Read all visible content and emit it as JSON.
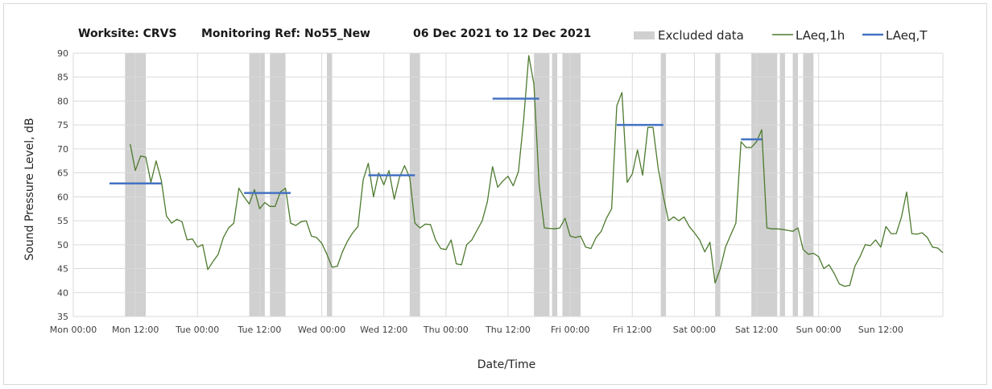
{
  "chart_data": {
    "type": "line",
    "title_parts": [
      "Worksite: CRVS",
      "Monitoring Ref: No55_New",
      "06 Dec 2021 to 12 Dec 2021"
    ],
    "xlabel": "Date/Time",
    "ylabel": "Sound Pressure Level, dB",
    "ylim": [
      35,
      90
    ],
    "y_ticks": [
      35,
      40,
      45,
      50,
      55,
      60,
      65,
      70,
      75,
      80,
      85,
      90
    ],
    "xlim_hours": [
      0,
      168
    ],
    "x_ticks": [
      {
        "label": "Mon 00:00",
        "hour": 0
      },
      {
        "label": "Mon 12:00",
        "hour": 12
      },
      {
        "label": "Tue 00:00",
        "hour": 24
      },
      {
        "label": "Tue 12:00",
        "hour": 36
      },
      {
        "label": "Wed 00:00",
        "hour": 48
      },
      {
        "label": "Wed 12:00",
        "hour": 60
      },
      {
        "label": "Thu 00:00",
        "hour": 72
      },
      {
        "label": "Thu 12:00",
        "hour": 84
      },
      {
        "label": "Fri 00:00",
        "hour": 96
      },
      {
        "label": "Fri 12:00",
        "hour": 108
      },
      {
        "label": "Sat 00:00",
        "hour": 120
      },
      {
        "label": "Sat 12:00",
        "hour": 132
      },
      {
        "label": "Sun 00:00",
        "hour": 144
      },
      {
        "label": "Sun 12:00",
        "hour": 156
      }
    ],
    "grid": true,
    "legend_position": "top-right",
    "legend": [
      "Excluded data",
      "LAeq,1h",
      "LAeq,T"
    ],
    "colors": {
      "excluded": "#d0d0d0",
      "laeq_1h": "#4d7a2e",
      "laeq_t": "#4472c4",
      "grid": "#d9d9d9"
    },
    "excluded_ranges": [
      [
        10.0,
        14.0
      ],
      [
        34.0,
        37.0
      ],
      [
        38.0,
        41.0
      ],
      [
        49.0,
        50.0
      ],
      [
        65.0,
        67.0
      ],
      [
        89.0,
        92.0
      ],
      [
        92.5,
        93.5
      ],
      [
        94.5,
        98.0
      ],
      [
        113.5,
        114.5
      ],
      [
        124.0,
        125.0
      ],
      [
        131.0,
        136.0
      ],
      [
        136.5,
        137.5
      ],
      [
        139.0,
        140.0
      ],
      [
        141.0,
        143.0
      ]
    ],
    "laeq_1h": [
      [
        11,
        71.0
      ],
      [
        12,
        65.5
      ],
      [
        13,
        68.5
      ],
      [
        14,
        68.3
      ],
      [
        15,
        63.0
      ],
      [
        16,
        67.5
      ],
      [
        17,
        63.5
      ],
      [
        18,
        56.0
      ],
      [
        19,
        54.5
      ],
      [
        20,
        55.3
      ],
      [
        21,
        54.8
      ],
      [
        22,
        51.0
      ],
      [
        23,
        51.2
      ],
      [
        24,
        49.5
      ],
      [
        25,
        50.0
      ],
      [
        26,
        44.8
      ],
      [
        27,
        46.5
      ],
      [
        28,
        48.0
      ],
      [
        29,
        51.5
      ],
      [
        30,
        53.5
      ],
      [
        31,
        54.5
      ],
      [
        32,
        61.8
      ],
      [
        33,
        60.0
      ],
      [
        34,
        58.5
      ],
      [
        35,
        61.5
      ],
      [
        36,
        57.5
      ],
      [
        37,
        58.8
      ],
      [
        38,
        58.0
      ],
      [
        39,
        58.0
      ],
      [
        40,
        61.0
      ],
      [
        41,
        61.8
      ],
      [
        42,
        54.5
      ],
      [
        43,
        54.0
      ],
      [
        44,
        54.8
      ],
      [
        45,
        55.0
      ],
      [
        46,
        51.8
      ],
      [
        47,
        51.5
      ],
      [
        48,
        50.3
      ],
      [
        49,
        48.0
      ],
      [
        50,
        45.3
      ],
      [
        51,
        45.5
      ],
      [
        52,
        48.5
      ],
      [
        53,
        50.8
      ],
      [
        54,
        52.5
      ],
      [
        55,
        53.8
      ],
      [
        56,
        63.5
      ],
      [
        57,
        67.0
      ],
      [
        58,
        60.0
      ],
      [
        59,
        65.0
      ],
      [
        60,
        62.5
      ],
      [
        61,
        65.5
      ],
      [
        62,
        59.5
      ],
      [
        63,
        64.0
      ],
      [
        64,
        66.5
      ],
      [
        65,
        64.0
      ],
      [
        66,
        54.5
      ],
      [
        67,
        53.5
      ],
      [
        68,
        54.3
      ],
      [
        69,
        54.2
      ],
      [
        70,
        51.0
      ],
      [
        71,
        49.2
      ],
      [
        72,
        49.0
      ],
      [
        73,
        51.0
      ],
      [
        74,
        46.0
      ],
      [
        75,
        45.8
      ],
      [
        76,
        50.0
      ],
      [
        77,
        51.0
      ],
      [
        78,
        53.0
      ],
      [
        79,
        55.0
      ],
      [
        80,
        59.0
      ],
      [
        81,
        66.3
      ],
      [
        82,
        62.0
      ],
      [
        83,
        63.3
      ],
      [
        84,
        64.3
      ],
      [
        85,
        62.3
      ],
      [
        86,
        65.3
      ],
      [
        87,
        76.0
      ],
      [
        88,
        89.5
      ],
      [
        89,
        83.5
      ],
      [
        90,
        62.5
      ],
      [
        91,
        53.5
      ],
      [
        92,
        53.4
      ],
      [
        93,
        53.3
      ],
      [
        94,
        53.5
      ],
      [
        95,
        55.5
      ],
      [
        96,
        51.8
      ],
      [
        97,
        51.5
      ],
      [
        98,
        51.8
      ],
      [
        99,
        49.5
      ],
      [
        100,
        49.2
      ],
      [
        101,
        51.5
      ],
      [
        102,
        52.8
      ],
      [
        103,
        55.5
      ],
      [
        104,
        57.5
      ],
      [
        105,
        79.0
      ],
      [
        106,
        81.8
      ],
      [
        107,
        63.0
      ],
      [
        108,
        64.8
      ],
      [
        109,
        69.8
      ],
      [
        110,
        64.5
      ],
      [
        111,
        74.5
      ],
      [
        112,
        74.5
      ],
      [
        113,
        66.0
      ],
      [
        114,
        60.0
      ],
      [
        115,
        55.0
      ],
      [
        116,
        55.8
      ],
      [
        117,
        55.0
      ],
      [
        118,
        55.8
      ],
      [
        119,
        53.8
      ],
      [
        120,
        52.5
      ],
      [
        121,
        51.0
      ],
      [
        122,
        48.5
      ],
      [
        123,
        50.5
      ],
      [
        124,
        42.0
      ],
      [
        125,
        45.0
      ],
      [
        126,
        49.5
      ],
      [
        127,
        52.0
      ],
      [
        128,
        54.5
      ],
      [
        129,
        71.5
      ],
      [
        130,
        70.3
      ],
      [
        131,
        70.3
      ],
      [
        132,
        71.5
      ],
      [
        133,
        74.0
      ],
      [
        134,
        53.5
      ],
      [
        135,
        53.3
      ],
      [
        136,
        53.3
      ],
      [
        137,
        53.2
      ],
      [
        138,
        53.0
      ],
      [
        139,
        52.8
      ],
      [
        140,
        53.5
      ],
      [
        141,
        49.0
      ],
      [
        142,
        48.0
      ],
      [
        143,
        48.2
      ],
      [
        144,
        47.5
      ],
      [
        145,
        45.0
      ],
      [
        146,
        45.8
      ],
      [
        147,
        44.0
      ],
      [
        148,
        41.8
      ],
      [
        149,
        41.3
      ],
      [
        150,
        41.5
      ],
      [
        151,
        45.5
      ],
      [
        152,
        47.5
      ],
      [
        153,
        50.0
      ],
      [
        154,
        49.8
      ],
      [
        155,
        51.0
      ],
      [
        156,
        49.5
      ],
      [
        157,
        53.8
      ],
      [
        158,
        52.3
      ],
      [
        159,
        52.3
      ],
      [
        160,
        55.8
      ],
      [
        161,
        61.0
      ],
      [
        162,
        52.3
      ],
      [
        163,
        52.2
      ],
      [
        164,
        52.5
      ],
      [
        165,
        51.5
      ],
      [
        166,
        49.5
      ],
      [
        167,
        49.3
      ],
      [
        168,
        48.3
      ]
    ],
    "laeq_t": [
      {
        "from": 7,
        "to": 17,
        "value": 62.8
      },
      {
        "from": 33,
        "to": 42,
        "value": 60.8
      },
      {
        "from": 57,
        "to": 66,
        "value": 64.5
      },
      {
        "from": 81,
        "to": 90,
        "value": 80.5
      },
      {
        "from": 105,
        "to": 114,
        "value": 75.0
      },
      {
        "from": 129,
        "to": 133,
        "value": 72.0
      }
    ]
  }
}
